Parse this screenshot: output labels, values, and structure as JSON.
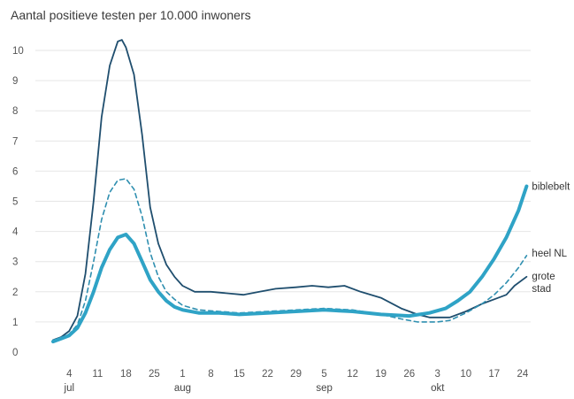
{
  "chart_data": {
    "type": "line",
    "title": "Aantal positieve testen per 10.000 inwoners",
    "ylim": [
      0,
      10.5
    ],
    "y_ticks": [
      "0",
      "1",
      "2",
      "3",
      "4",
      "5",
      "6",
      "7",
      "8",
      "9",
      "10"
    ],
    "grid": "horizontal",
    "x_ticks": [
      {
        "label": "4",
        "x": "2021-07-04"
      },
      {
        "label": "11",
        "x": "2021-07-11"
      },
      {
        "label": "18",
        "x": "2021-07-18"
      },
      {
        "label": "25",
        "x": "2021-07-25"
      },
      {
        "label": "1",
        "x": "2021-08-01"
      },
      {
        "label": "8",
        "x": "2021-08-08"
      },
      {
        "label": "15",
        "x": "2021-08-15"
      },
      {
        "label": "22",
        "x": "2021-08-22"
      },
      {
        "label": "29",
        "x": "2021-08-29"
      },
      {
        "label": "5",
        "x": "2021-09-05"
      },
      {
        "label": "12",
        "x": "2021-09-12"
      },
      {
        "label": "19",
        "x": "2021-09-19"
      },
      {
        "label": "26",
        "x": "2021-09-26"
      },
      {
        "label": "3",
        "x": "2021-10-03"
      },
      {
        "label": "10",
        "x": "2021-10-10"
      },
      {
        "label": "17",
        "x": "2021-10-17"
      },
      {
        "label": "24",
        "x": "2021-10-24"
      }
    ],
    "month_labels": [
      {
        "label": "jul",
        "x": "2021-07-04"
      },
      {
        "label": "aug",
        "x": "2021-08-01"
      },
      {
        "label": "sep",
        "x": "2021-09-05"
      },
      {
        "label": "okt",
        "x": "2021-10-03"
      }
    ],
    "xlim": [
      "2021-06-30",
      "2021-10-26"
    ],
    "series": [
      {
        "name": "grote stad",
        "label_lines": [
          "grote",
          "stad"
        ],
        "color": "#1f4e6e",
        "style": "solid-thin",
        "points": [
          [
            "2021-06-30",
            0.4
          ],
          [
            "2021-07-02",
            0.5
          ],
          [
            "2021-07-04",
            0.7
          ],
          [
            "2021-07-06",
            1.2
          ],
          [
            "2021-07-08",
            2.6
          ],
          [
            "2021-07-10",
            5.0
          ],
          [
            "2021-07-12",
            7.8
          ],
          [
            "2021-07-14",
            9.5
          ],
          [
            "2021-07-16",
            10.3
          ],
          [
            "2021-07-17",
            10.35
          ],
          [
            "2021-07-18",
            10.1
          ],
          [
            "2021-07-20",
            9.2
          ],
          [
            "2021-07-22",
            7.2
          ],
          [
            "2021-07-24",
            4.8
          ],
          [
            "2021-07-26",
            3.6
          ],
          [
            "2021-07-28",
            2.9
          ],
          [
            "2021-07-30",
            2.5
          ],
          [
            "2021-08-01",
            2.2
          ],
          [
            "2021-08-04",
            2.0
          ],
          [
            "2021-08-08",
            2.0
          ],
          [
            "2021-08-12",
            1.95
          ],
          [
            "2021-08-16",
            1.9
          ],
          [
            "2021-08-20",
            2.0
          ],
          [
            "2021-08-24",
            2.1
          ],
          [
            "2021-08-29",
            2.15
          ],
          [
            "2021-09-02",
            2.2
          ],
          [
            "2021-09-06",
            2.15
          ],
          [
            "2021-09-10",
            2.2
          ],
          [
            "2021-09-14",
            2.0
          ],
          [
            "2021-09-19",
            1.8
          ],
          [
            "2021-09-24",
            1.45
          ],
          [
            "2021-09-28",
            1.25
          ],
          [
            "2021-10-01",
            1.15
          ],
          [
            "2021-10-03",
            1.15
          ],
          [
            "2021-10-06",
            1.15
          ],
          [
            "2021-10-10",
            1.35
          ],
          [
            "2021-10-14",
            1.6
          ],
          [
            "2021-10-17",
            1.75
          ],
          [
            "2021-10-20",
            1.9
          ],
          [
            "2021-10-22",
            2.2
          ],
          [
            "2021-10-25",
            2.5
          ]
        ]
      },
      {
        "name": "heel NL",
        "label_lines": [
          "heel NL"
        ],
        "color": "#2f8fb0",
        "style": "dashed",
        "points": [
          [
            "2021-06-30",
            0.4
          ],
          [
            "2021-07-02",
            0.45
          ],
          [
            "2021-07-04",
            0.6
          ],
          [
            "2021-07-06",
            0.9
          ],
          [
            "2021-07-08",
            1.7
          ],
          [
            "2021-07-10",
            3.0
          ],
          [
            "2021-07-12",
            4.4
          ],
          [
            "2021-07-14",
            5.3
          ],
          [
            "2021-07-16",
            5.7
          ],
          [
            "2021-07-18",
            5.75
          ],
          [
            "2021-07-20",
            5.4
          ],
          [
            "2021-07-22",
            4.5
          ],
          [
            "2021-07-24",
            3.3
          ],
          [
            "2021-07-26",
            2.5
          ],
          [
            "2021-07-28",
            2.0
          ],
          [
            "2021-07-30",
            1.75
          ],
          [
            "2021-08-01",
            1.55
          ],
          [
            "2021-08-05",
            1.4
          ],
          [
            "2021-08-10",
            1.35
          ],
          [
            "2021-08-15",
            1.3
          ],
          [
            "2021-08-22",
            1.35
          ],
          [
            "2021-08-29",
            1.4
          ],
          [
            "2021-09-05",
            1.45
          ],
          [
            "2021-09-12",
            1.4
          ],
          [
            "2021-09-19",
            1.25
          ],
          [
            "2021-09-24",
            1.1
          ],
          [
            "2021-09-28",
            1.0
          ],
          [
            "2021-10-01",
            1.0
          ],
          [
            "2021-10-03",
            1.0
          ],
          [
            "2021-10-06",
            1.05
          ],
          [
            "2021-10-10",
            1.3
          ],
          [
            "2021-10-14",
            1.6
          ],
          [
            "2021-10-17",
            1.9
          ],
          [
            "2021-10-20",
            2.3
          ],
          [
            "2021-10-23",
            2.8
          ],
          [
            "2021-10-25",
            3.2
          ]
        ]
      },
      {
        "name": "biblebelt",
        "label_lines": [
          "biblebelt"
        ],
        "color": "#2fa3c6",
        "style": "solid-thick",
        "points": [
          [
            "2021-06-30",
            0.35
          ],
          [
            "2021-07-02",
            0.45
          ],
          [
            "2021-07-04",
            0.55
          ],
          [
            "2021-07-06",
            0.8
          ],
          [
            "2021-07-08",
            1.3
          ],
          [
            "2021-07-10",
            2.0
          ],
          [
            "2021-07-12",
            2.8
          ],
          [
            "2021-07-14",
            3.4
          ],
          [
            "2021-07-16",
            3.8
          ],
          [
            "2021-07-18",
            3.9
          ],
          [
            "2021-07-20",
            3.6
          ],
          [
            "2021-07-22",
            3.0
          ],
          [
            "2021-07-24",
            2.4
          ],
          [
            "2021-07-26",
            2.0
          ],
          [
            "2021-07-28",
            1.7
          ],
          [
            "2021-07-30",
            1.5
          ],
          [
            "2021-08-01",
            1.4
          ],
          [
            "2021-08-05",
            1.3
          ],
          [
            "2021-08-10",
            1.3
          ],
          [
            "2021-08-15",
            1.25
          ],
          [
            "2021-08-22",
            1.3
          ],
          [
            "2021-08-29",
            1.35
          ],
          [
            "2021-09-05",
            1.4
          ],
          [
            "2021-09-12",
            1.35
          ],
          [
            "2021-09-19",
            1.25
          ],
          [
            "2021-09-26",
            1.2
          ],
          [
            "2021-10-01",
            1.3
          ],
          [
            "2021-10-05",
            1.45
          ],
          [
            "2021-10-08",
            1.7
          ],
          [
            "2021-10-11",
            2.0
          ],
          [
            "2021-10-14",
            2.5
          ],
          [
            "2021-10-17",
            3.1
          ],
          [
            "2021-10-20",
            3.8
          ],
          [
            "2021-10-23",
            4.7
          ],
          [
            "2021-10-25",
            5.5
          ]
        ]
      }
    ]
  }
}
